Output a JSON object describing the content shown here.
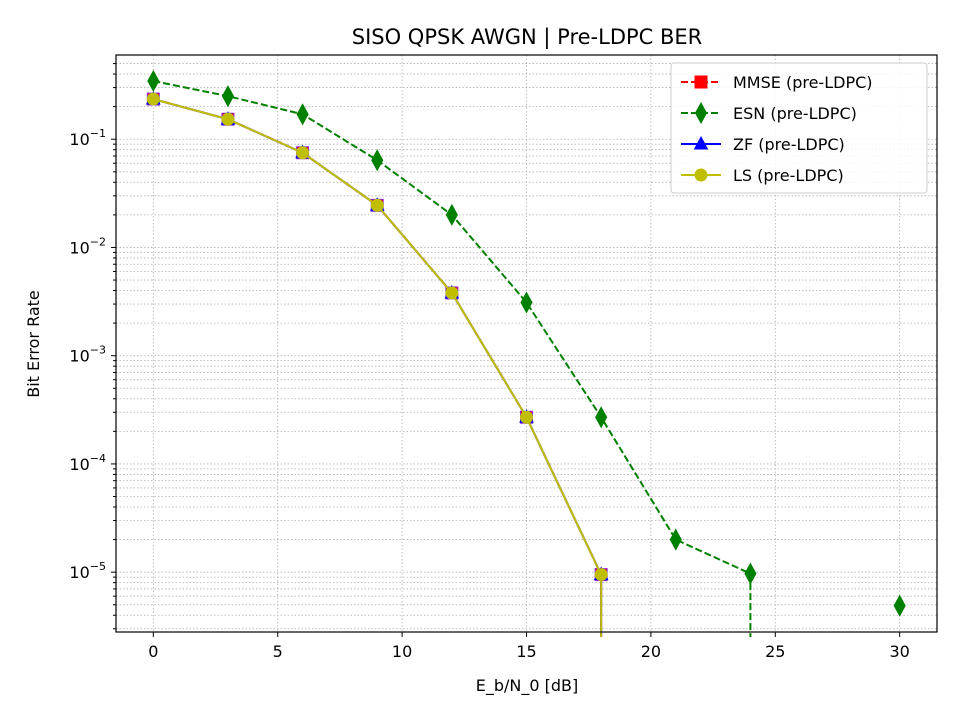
{
  "chart_data": {
    "type": "line",
    "title": "SISO QPSK AWGN | Pre-LDPC BER",
    "xlabel": "E_b/N_0 [dB]",
    "ylabel": "Bit Error Rate",
    "xlim": [
      -1.5,
      31.5
    ],
    "ylim": [
      2.8e-06,
      0.6
    ],
    "yscale": "log",
    "grid": true,
    "legend_position": "top-right",
    "xticks": [
      0,
      5,
      10,
      15,
      20,
      25,
      30
    ],
    "xtick_labels": [
      "0",
      "5",
      "10",
      "15",
      "20",
      "25",
      "30"
    ],
    "ytick_exponents": [
      -5,
      -4,
      -3,
      -2,
      -1
    ],
    "ytick_base": "10",
    "series": [
      {
        "name": "MMSE (pre-LDPC)",
        "color": "#ff0000",
        "linestyle": "dashed",
        "marker": "square",
        "x": [
          0,
          3,
          6,
          9,
          12,
          15,
          18,
          21
        ],
        "y": [
          0.235,
          0.153,
          0.075,
          0.0245,
          0.0038,
          0.00027,
          9.5e-06,
          0
        ]
      },
      {
        "name": "ESN (pre-LDPC)",
        "color": "#008000",
        "linestyle": "dashed",
        "marker": "thin_diamond",
        "x": [
          0,
          3,
          6,
          9,
          12,
          15,
          18,
          21,
          24,
          27,
          30
        ],
        "y": [
          0.345,
          0.25,
          0.17,
          0.064,
          0.02,
          0.0031,
          0.00027,
          2e-05,
          9.7e-06,
          0,
          4.9e-06
        ]
      },
      {
        "name": "ZF (pre-LDPC)",
        "color": "#0000ff",
        "linestyle": "solid",
        "marker": "triangle",
        "x": [
          0,
          3,
          6,
          9,
          12,
          15,
          18,
          21
        ],
        "y": [
          0.235,
          0.153,
          0.075,
          0.0245,
          0.0038,
          0.00027,
          9.5e-06,
          0
        ]
      },
      {
        "name": "LS (pre-LDPC)",
        "color": "#bfbf00",
        "linestyle": "solid",
        "marker": "circle",
        "x": [
          0,
          3,
          6,
          9,
          12,
          15,
          18,
          21
        ],
        "y": [
          0.235,
          0.153,
          0.075,
          0.0245,
          0.0038,
          0.00027,
          9.5e-06,
          0
        ]
      }
    ]
  }
}
